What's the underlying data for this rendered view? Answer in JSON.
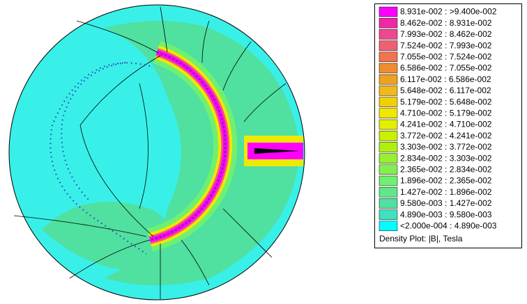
{
  "legend": {
    "entries": [
      {
        "label": "8.931e-002 : >9.400e-002",
        "color": "#ff00ff"
      },
      {
        "label": "8.462e-002 : 8.931e-002",
        "color": "#f028a8"
      },
      {
        "label": "7.993e-002 : 8.462e-002",
        "color": "#f04890"
      },
      {
        "label": "7.524e-002 : 7.993e-002",
        "color": "#f06070"
      },
      {
        "label": "7.055e-002 : 7.524e-002",
        "color": "#f07450"
      },
      {
        "label": "6.586e-002 : 7.055e-002",
        "color": "#f08c30"
      },
      {
        "label": "6.117e-002 : 6.586e-002",
        "color": "#f0a020"
      },
      {
        "label": "5.648e-002 : 6.117e-002",
        "color": "#f0b818"
      },
      {
        "label": "5.179e-002 : 5.648e-002",
        "color": "#f0d000"
      },
      {
        "label": "4.710e-002 : 5.179e-002",
        "color": "#f0e800"
      },
      {
        "label": "4.241e-002 : 4.710e-002",
        "color": "#e0f000"
      },
      {
        "label": "3.772e-002 : 4.241e-002",
        "color": "#c8f000"
      },
      {
        "label": "3.303e-002 : 3.772e-002",
        "color": "#b0f010"
      },
      {
        "label": "2.834e-002 : 3.303e-002",
        "color": "#98f030"
      },
      {
        "label": "2.365e-002 : 2.834e-002",
        "color": "#80f050"
      },
      {
        "label": "1.896e-002 : 2.365e-002",
        "color": "#70f070"
      },
      {
        "label": "1.427e-002 : 1.896e-002",
        "color": "#60e888"
      },
      {
        "label": "9.580e-003 : 1.427e-002",
        "color": "#50e0a0"
      },
      {
        "label": "4.890e-003 : 9.580e-003",
        "color": "#40e0c0"
      },
      {
        "label": "<2.000e-004 : 4.890e-003",
        "color": "#00ffff"
      }
    ],
    "caption": "Density Plot: |B|, Tesla"
  }
}
